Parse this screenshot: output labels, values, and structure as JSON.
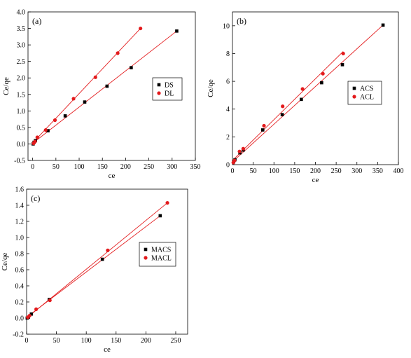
{
  "figure": {
    "colors": {
      "s_series": "#000000",
      "l_series": "#e31a1c",
      "fit": "#e31a1c",
      "axis": "#000000"
    }
  },
  "chart_data": [
    {
      "type": "scatter",
      "panel_label": "(a)",
      "xlabel": "ce",
      "ylabel": "Ce/qe",
      "xlim": [
        -10,
        350
      ],
      "ylim": [
        -0.5,
        4.0
      ],
      "xticks": [
        0,
        50,
        100,
        150,
        200,
        250,
        300,
        350
      ],
      "yticks": [
        -0.5,
        0.0,
        0.5,
        1.0,
        1.5,
        2.0,
        2.5,
        3.0,
        3.5,
        4.0
      ],
      "ytick_labels": [
        "-0.5",
        "0.0",
        "0.5",
        "1.0",
        "1.5",
        "2.0",
        "2.5",
        "3.0",
        "3.5",
        "4.0"
      ],
      "legend_position": "right",
      "series": [
        {
          "name": "DS",
          "marker": "square",
          "x": [
            1,
            3,
            6,
            33,
            70,
            112,
            160,
            212,
            310
          ],
          "y": [
            0.0,
            0.05,
            0.1,
            0.4,
            0.85,
            1.27,
            1.75,
            2.31,
            3.42
          ],
          "fit": [
            [
              0,
              0.02
            ],
            [
              310,
              3.42
            ]
          ]
        },
        {
          "name": "DL",
          "marker": "circle",
          "x": [
            2,
            5,
            10,
            28,
            48,
            88,
            135,
            183,
            232
          ],
          "y": [
            0.02,
            0.07,
            0.2,
            0.42,
            0.72,
            1.37,
            2.02,
            2.75,
            3.5
          ],
          "fit": [
            [
              0,
              0.03
            ],
            [
              232,
              3.5
            ]
          ]
        }
      ]
    },
    {
      "type": "scatter",
      "panel_label": "(b)",
      "xlabel": "ce",
      "ylabel": "Ce/qe",
      "xlim": [
        0,
        400
      ],
      "ylim": [
        0,
        11
      ],
      "xticks": [
        0,
        50,
        100,
        150,
        200,
        250,
        300,
        350,
        400
      ],
      "yticks": [
        0,
        2,
        4,
        6,
        8,
        10
      ],
      "ytick_labels": [
        "0",
        "2",
        "4",
        "6",
        "8",
        "10"
      ],
      "legend_position": "right",
      "series": [
        {
          "name": "ACS",
          "marker": "square",
          "x": [
            3,
            6,
            18,
            26,
            73,
            120,
            166,
            215,
            265,
            363
          ],
          "y": [
            0.2,
            0.35,
            0.85,
            1.05,
            2.5,
            3.6,
            4.7,
            5.9,
            7.2,
            10.05
          ],
          "fit": [
            [
              0,
              0.2
            ],
            [
              363,
              10.05
            ]
          ]
        },
        {
          "name": "ACL",
          "marker": "circle",
          "x": [
            2,
            5,
            17,
            26,
            76,
            121,
            169,
            218,
            267
          ],
          "y": [
            0.15,
            0.3,
            0.95,
            1.15,
            2.8,
            4.2,
            5.45,
            6.55,
            8.0
          ],
          "fit": [
            [
              0,
              0.3
            ],
            [
              267,
              8.15
            ]
          ]
        }
      ]
    },
    {
      "type": "scatter",
      "panel_label": "(c)",
      "xlabel": "ce",
      "ylabel": "Ce/qe",
      "xlim": [
        0,
        270
      ],
      "ylim": [
        -0.2,
        1.6
      ],
      "xticks": [
        0,
        50,
        100,
        150,
        200,
        250
      ],
      "yticks": [
        -0.2,
        0.0,
        0.2,
        0.4,
        0.6,
        0.8,
        1.0,
        1.2,
        1.4,
        1.6
      ],
      "ytick_labels": [
        "-0.2",
        "0.0",
        "0.2",
        "0.4",
        "0.6",
        "0.8",
        "1.0",
        "1.2",
        "1.4",
        "1.6"
      ],
      "legend_position": "right",
      "series": [
        {
          "name": "MACS",
          "marker": "square",
          "x": [
            1,
            3,
            8,
            38,
            127,
            224
          ],
          "y": [
            0.0,
            0.01,
            0.05,
            0.23,
            0.73,
            1.27
          ],
          "fit": [
            [
              0,
              0.01
            ],
            [
              224,
              1.27
            ]
          ]
        },
        {
          "name": "MACL",
          "marker": "circle",
          "x": [
            2,
            5,
            16,
            39,
            136,
            236
          ],
          "y": [
            0.01,
            0.03,
            0.11,
            0.22,
            0.84,
            1.43
          ],
          "fit": [
            [
              0,
              0.0
            ],
            [
              236,
              1.43
            ]
          ]
        }
      ]
    }
  ]
}
